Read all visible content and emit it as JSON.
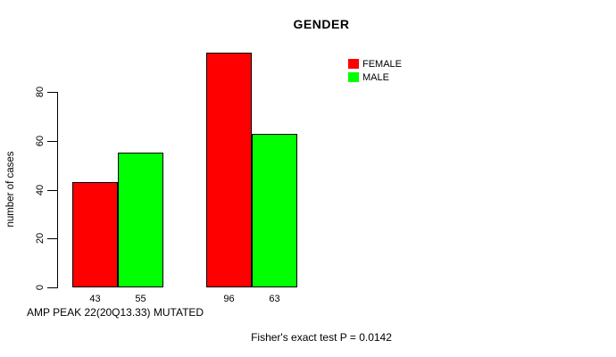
{
  "title": "GENDER",
  "y_axis": {
    "label": "number of cases"
  },
  "x_axis": {
    "label": "AMP PEAK 22(20Q13.33) MUTATED"
  },
  "footer": "Fisher's exact test P = 0.0142",
  "colors": {
    "female": "#ff0000",
    "male": "#00ff00",
    "axis": "#000000",
    "background": "#ffffff"
  },
  "chart_data": {
    "type": "bar",
    "title": "GENDER",
    "ylabel": "number of cases",
    "xlabel": "AMP PEAK 22(20Q13.33) MUTATED",
    "annotation": "Fisher's exact test P = 0.0142",
    "categories": [
      "",
      ""
    ],
    "series": [
      {
        "name": "FEMALE",
        "color": "#ff0000",
        "values": [
          43,
          96
        ]
      },
      {
        "name": "MALE",
        "color": "#00ff00",
        "values": [
          55,
          63
        ]
      }
    ],
    "bar_value_labels": [
      [
        43,
        55
      ],
      [
        96,
        63
      ]
    ],
    "yticks": [
      0,
      20,
      40,
      60,
      80
    ],
    "ylim": [
      0,
      96
    ],
    "grid": false,
    "legend_position": "top-right"
  }
}
